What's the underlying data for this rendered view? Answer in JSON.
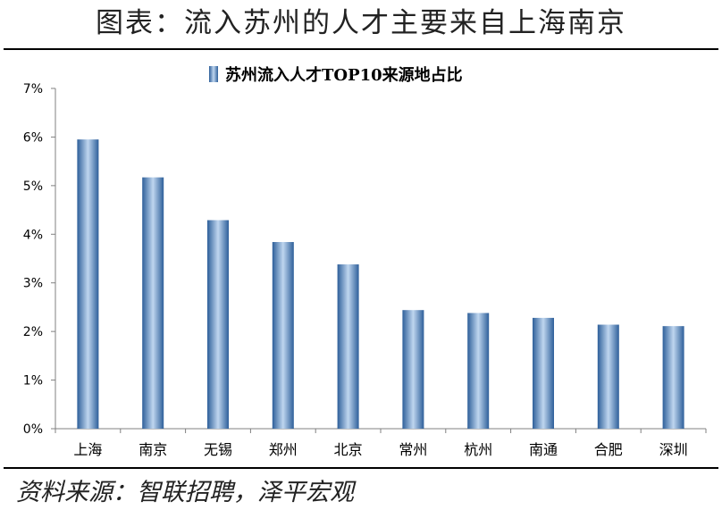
{
  "figure": {
    "title": "图表：流入苏州的人才主要来自上海南京",
    "source": "资料来源：智联招聘，泽平宏观"
  },
  "chart_data": {
    "type": "bar",
    "title": "苏州流入人才TOP10来源地占比",
    "legend_position": "top",
    "series": [
      {
        "name": "苏州流入人才TOP10来源地占比",
        "values": [
          5.95,
          5.17,
          4.29,
          3.84,
          3.38,
          2.44,
          2.38,
          2.28,
          2.14,
          2.11
        ]
      }
    ],
    "categories": [
      "上海",
      "南京",
      "无锡",
      "郑州",
      "北京",
      "常州",
      "杭州",
      "南通",
      "合肥",
      "深圳"
    ],
    "ylim": [
      0,
      7
    ],
    "yticks": [
      "0%",
      "1%",
      "2%",
      "3%",
      "4%",
      "5%",
      "6%",
      "7%"
    ],
    "grid": false,
    "colors": {
      "bar_edge": "#2E5F9A",
      "bar_mid": "#BFD6EF",
      "axis": "#808080"
    }
  }
}
